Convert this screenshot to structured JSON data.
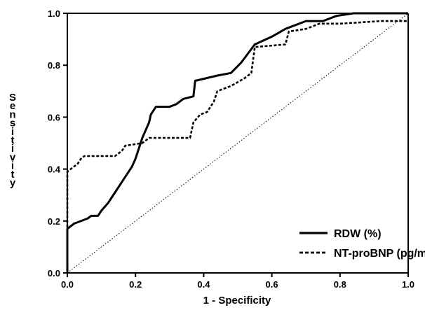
{
  "chart_data": {
    "type": "line",
    "title": "",
    "xlabel": "1 - Specificity",
    "ylabel": "Sensitivity",
    "xlim": [
      0,
      1
    ],
    "ylim": [
      0,
      1
    ],
    "x_ticks": [
      "0.0",
      "0.2",
      "0.4",
      "0.6",
      "0.8",
      "1.0"
    ],
    "y_ticks": [
      "0.0",
      "0.2",
      "0.4",
      "0.6",
      "0.8",
      "1.0"
    ],
    "grid": false,
    "legend_position": "bottom-right",
    "reference_line": {
      "style": "dotted",
      "from": [
        0,
        0
      ],
      "to": [
        1,
        1
      ]
    },
    "series": [
      {
        "name": "RDW (%)",
        "style": "solid",
        "color": "#000000",
        "points": [
          [
            0,
            0
          ],
          [
            0,
            0.17
          ],
          [
            0.02,
            0.19
          ],
          [
            0.06,
            0.21
          ],
          [
            0.07,
            0.22
          ],
          [
            0.09,
            0.22
          ],
          [
            0.1,
            0.24
          ],
          [
            0.12,
            0.27
          ],
          [
            0.14,
            0.31
          ],
          [
            0.15,
            0.33
          ],
          [
            0.17,
            0.37
          ],
          [
            0.18,
            0.39
          ],
          [
            0.19,
            0.41
          ],
          [
            0.2,
            0.44
          ],
          [
            0.21,
            0.48
          ],
          [
            0.22,
            0.52
          ],
          [
            0.24,
            0.58
          ],
          [
            0.245,
            0.61
          ],
          [
            0.26,
            0.64
          ],
          [
            0.3,
            0.64
          ],
          [
            0.32,
            0.65
          ],
          [
            0.34,
            0.67
          ],
          [
            0.37,
            0.68
          ],
          [
            0.375,
            0.74
          ],
          [
            0.44,
            0.76
          ],
          [
            0.48,
            0.77
          ],
          [
            0.51,
            0.81
          ],
          [
            0.55,
            0.88
          ],
          [
            0.6,
            0.91
          ],
          [
            0.64,
            0.94
          ],
          [
            0.7,
            0.97
          ],
          [
            0.75,
            0.97
          ],
          [
            0.79,
            0.99
          ],
          [
            0.84,
            1.0
          ],
          [
            1.0,
            1.0
          ]
        ]
      },
      {
        "name": "NT-proBNP (pg/mL)",
        "style": "dashed",
        "color": "#000000",
        "points": [
          [
            0,
            0
          ],
          [
            0,
            0.39
          ],
          [
            0.02,
            0.41
          ],
          [
            0.03,
            0.42
          ],
          [
            0.04,
            0.44
          ],
          [
            0.05,
            0.45
          ],
          [
            0.14,
            0.45
          ],
          [
            0.16,
            0.47
          ],
          [
            0.17,
            0.49
          ],
          [
            0.22,
            0.5
          ],
          [
            0.24,
            0.52
          ],
          [
            0.36,
            0.52
          ],
          [
            0.37,
            0.58
          ],
          [
            0.39,
            0.61
          ],
          [
            0.41,
            0.62
          ],
          [
            0.43,
            0.66
          ],
          [
            0.44,
            0.7
          ],
          [
            0.48,
            0.72
          ],
          [
            0.52,
            0.75
          ],
          [
            0.54,
            0.77
          ],
          [
            0.55,
            0.87
          ],
          [
            0.64,
            0.88
          ],
          [
            0.65,
            0.93
          ],
          [
            0.7,
            0.94
          ],
          [
            0.74,
            0.96
          ],
          [
            0.8,
            0.96
          ],
          [
            0.92,
            0.97
          ],
          [
            1.0,
            0.97
          ]
        ]
      }
    ]
  }
}
